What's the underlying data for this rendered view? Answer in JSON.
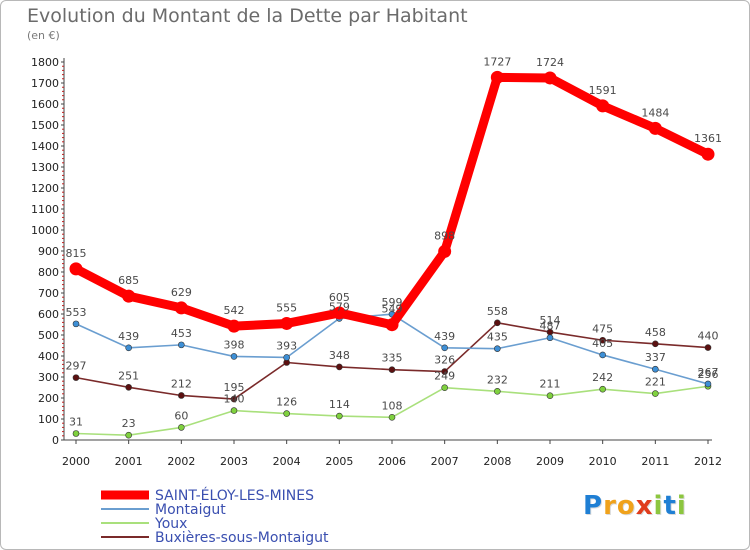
{
  "header": {
    "title": "Evolution du Montant de la Dette par Habitant",
    "subtitle": "(en €)"
  },
  "logo": {
    "text": "Proxiti",
    "letter_colors": [
      "#1f7fd4",
      "#f0a21b",
      "#f0a21b",
      "#e03c1c",
      "#8cc63f",
      "#1f7fd4",
      "#8cc63f"
    ]
  },
  "chart_data": {
    "type": "line",
    "title": "Evolution du Montant de la Dette par Habitant",
    "subtitle": "(en €)",
    "xlabel": "",
    "ylabel": "",
    "x": [
      "2000",
      "2001",
      "2002",
      "2003",
      "2004",
      "2005",
      "2006",
      "2007",
      "2008",
      "2009",
      "2010",
      "2011",
      "2012"
    ],
    "y_ticks": [
      "0",
      "100",
      "200",
      "300",
      "400",
      "500",
      "600",
      "700",
      "800",
      "900",
      "1000",
      "1100",
      "1200",
      "1300",
      "1400",
      "1500",
      "1600",
      "1700",
      "1800"
    ],
    "ylim": [
      0,
      1800
    ],
    "grid": false,
    "legend_position": "bottom-left",
    "series": [
      {
        "name": "SAINT-ÉLOY-LES-MINES",
        "color": "#ff0000",
        "values": [
          815,
          685,
          629,
          542,
          555,
          605,
          549,
          898,
          1727,
          1724,
          1591,
          1484,
          1361
        ],
        "labels": [
          "815",
          "685",
          "629",
          "542",
          "555",
          "605",
          "549",
          "898",
          "1727",
          "1724",
          "1591",
          "1484",
          "1361"
        ]
      },
      {
        "name": "Montaigut",
        "color": "#6a9ed0",
        "marker_color": "#3d8fd6",
        "values": [
          553,
          439,
          453,
          398,
          393,
          579,
          599,
          439,
          435,
          487,
          405,
          337,
          267
        ],
        "labels": [
          "553",
          "439",
          "453",
          "398",
          "393",
          "579",
          "599",
          "439",
          "435",
          "487",
          "405",
          "337",
          "267"
        ]
      },
      {
        "name": "Youx",
        "color": "#a9e07c",
        "marker_color": "#7fd13e",
        "values": [
          31,
          23,
          60,
          140,
          126,
          114,
          108,
          249,
          232,
          211,
          242,
          221,
          256
        ],
        "labels": [
          "31",
          "23",
          "60",
          "140",
          "126",
          "114",
          "108",
          "249",
          "232",
          "211",
          "242",
          "221",
          "256"
        ]
      },
      {
        "name": "Buxières-sous-Montaigut",
        "color": "#7a2a2a",
        "marker_color": "#5c1010",
        "values": [
          297,
          251,
          212,
          195,
          369,
          348,
          335,
          326,
          558,
          514,
          475,
          458,
          440
        ],
        "labels": [
          "297",
          "251",
          "212",
          "195",
          "",
          "348",
          "335",
          "326",
          "558",
          "514",
          "475",
          "458",
          "440"
        ]
      }
    ]
  }
}
